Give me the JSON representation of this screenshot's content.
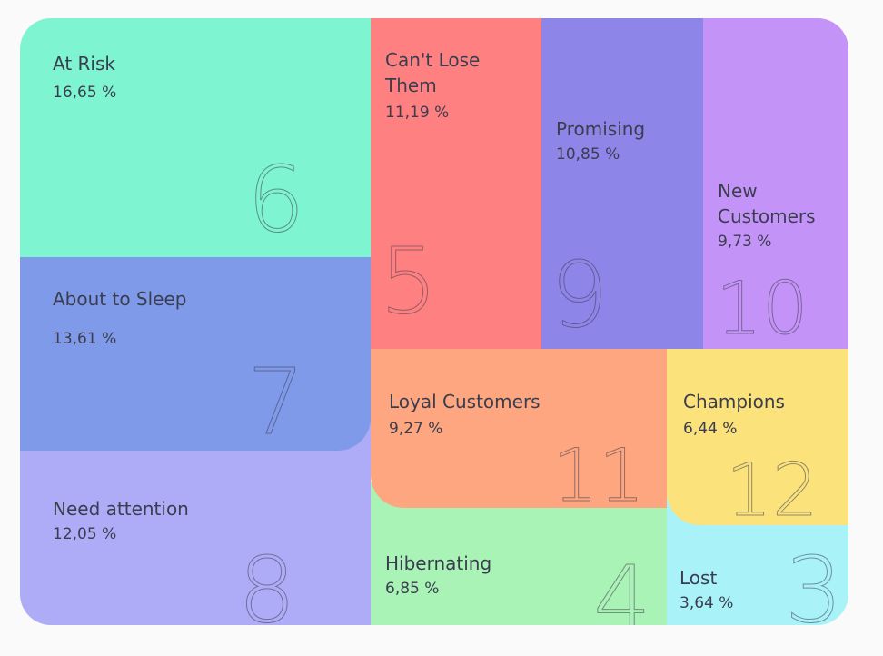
{
  "chart_data": {
    "type": "treemap",
    "segments": [
      {
        "id": "at-risk",
        "name": "At Risk",
        "percent_label": "16,65 %",
        "value": 16.65,
        "number": "6",
        "color": "#7ef5d0"
      },
      {
        "id": "about-sleep",
        "name": "About to Sleep",
        "percent_label": "13,61 %",
        "value": 13.61,
        "number": "7",
        "color": "#7f9ae8"
      },
      {
        "id": "need-att",
        "name": "Need attention",
        "percent_label": "12,05 %",
        "value": 12.05,
        "number": "8",
        "color": "#aeacf7"
      },
      {
        "id": "cant-lose",
        "name": "Can't Lose\nThem",
        "percent_label": "11,19 %",
        "value": 11.19,
        "number": "5",
        "color": "#ff8080"
      },
      {
        "id": "promising",
        "name": "Promising",
        "percent_label": "10,85 %",
        "value": 10.85,
        "number": "9",
        "color": "#8e85e8"
      },
      {
        "id": "new-cust",
        "name": "New\nCustomers",
        "percent_label": "9,73 %",
        "value": 9.73,
        "number": "10",
        "color": "#c493f7"
      },
      {
        "id": "loyal",
        "name": "Loyal Customers",
        "percent_label": "9,27 %",
        "value": 9.27,
        "number": "11",
        "color": "#fda67f"
      },
      {
        "id": "hibernating",
        "name": "Hibernating",
        "percent_label": "6,85 %",
        "value": 6.85,
        "number": "4",
        "color": "#aaf3b6"
      },
      {
        "id": "champions",
        "name": "Champions",
        "percent_label": "6,44 %",
        "value": 6.44,
        "number": "12",
        "color": "#fbe27b"
      },
      {
        "id": "lost",
        "name": "Lost",
        "percent_label": "3,64 %",
        "value": 3.64,
        "number": "3",
        "color": "#a9f3f8"
      }
    ]
  }
}
